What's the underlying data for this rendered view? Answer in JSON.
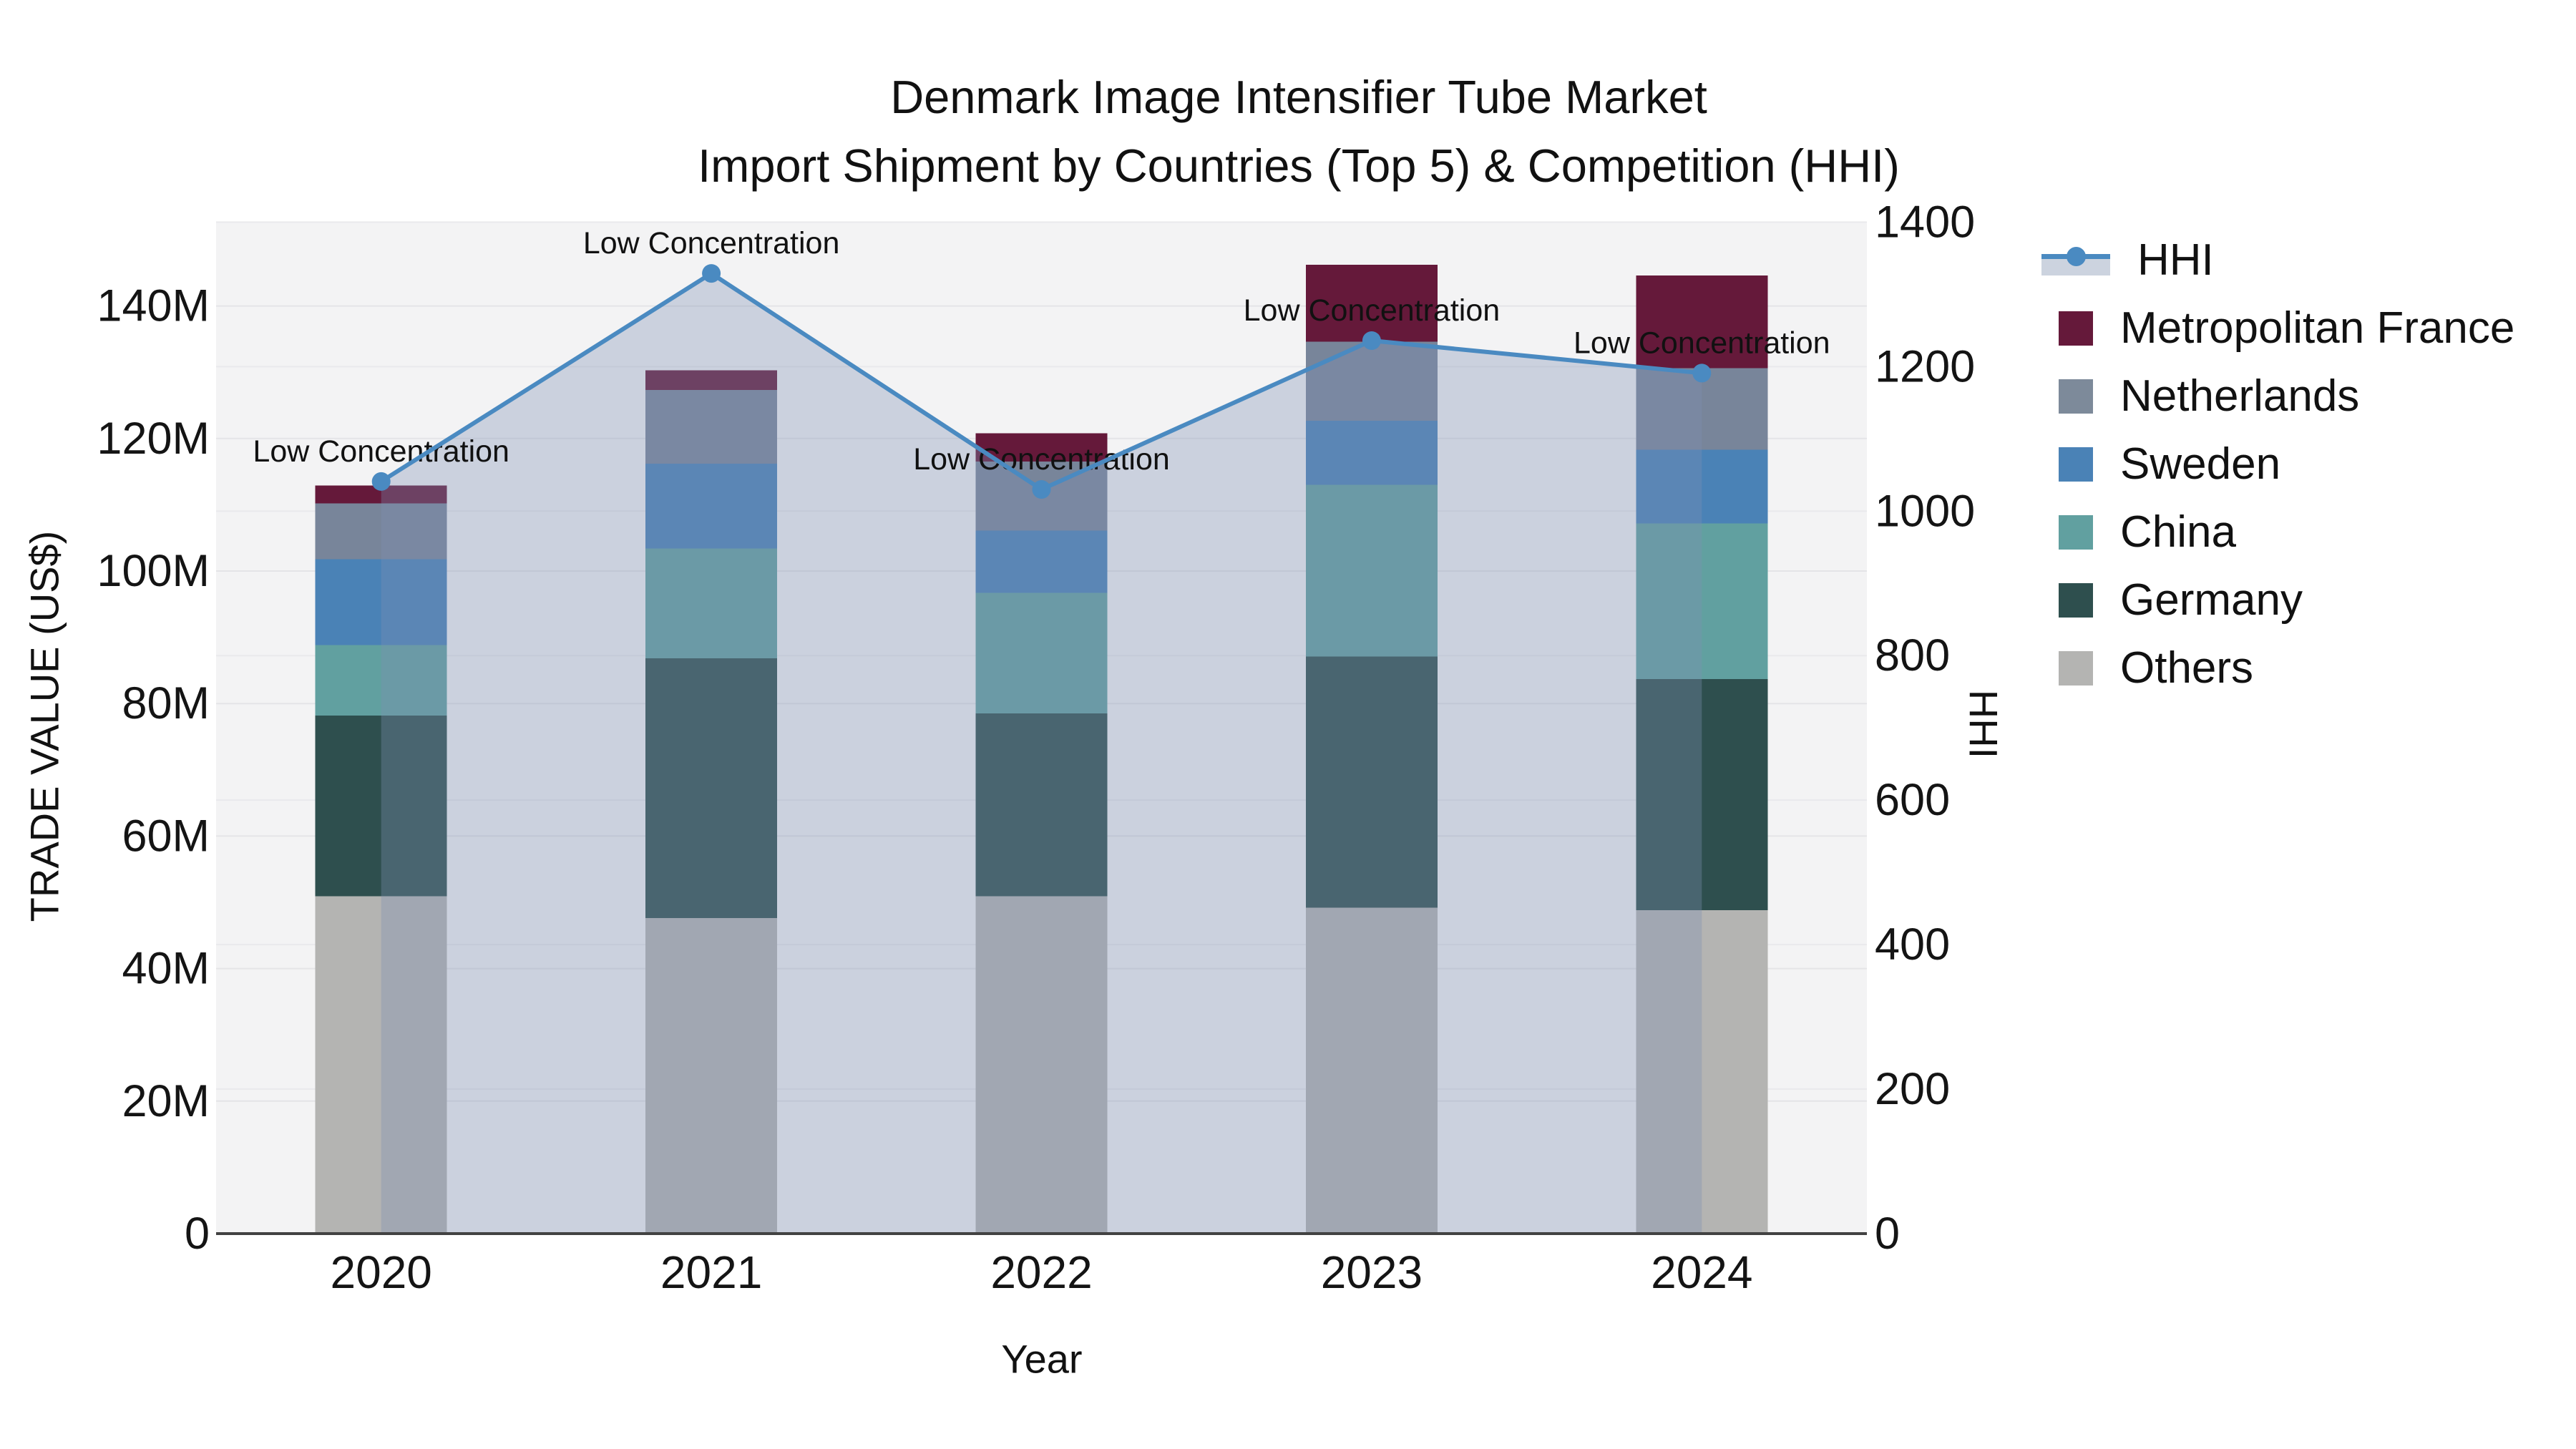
{
  "title": {
    "line1": "Denmark Image Intensifier Tube Market",
    "line2": "Import Shipment by Countries (Top 5) & Competition (HHI)"
  },
  "legend": {
    "position": "right",
    "items": [
      {
        "label": "HHI",
        "type": "line",
        "color": "#4a8ac1",
        "band_color": "#ccd3df"
      },
      {
        "label": "Metropolitan France",
        "type": "square",
        "color": "#65193a"
      },
      {
        "label": "Netherlands",
        "type": "square",
        "color": "#7d8a9a"
      },
      {
        "label": "Sweden",
        "type": "square",
        "color": "#4a82b6"
      },
      {
        "label": "China",
        "type": "square",
        "color": "#61a0a0"
      },
      {
        "label": "Germany",
        "type": "square",
        "color": "#2e4f4e"
      },
      {
        "label": "Others",
        "type": "square",
        "color": "#b4b4b2"
      }
    ]
  },
  "chart_data": {
    "type": "bar",
    "subtype": "stacked-bars-with-line-overlay",
    "title": "Denmark Image Intensifier Tube Market — Import Shipment by Countries (Top 5) & Competition (HHI)",
    "categories": [
      "2020",
      "2021",
      "2022",
      "2023",
      "2024"
    ],
    "values_unit": "million US$",
    "series": [
      {
        "name": "Others",
        "color": "#b4b4b2",
        "values": [
          50.9,
          47.6,
          50.9,
          49.2,
          48.8
        ]
      },
      {
        "name": "Germany",
        "color": "#2e4f4e",
        "values": [
          27.3,
          39.2,
          27.6,
          37.9,
          34.9
        ]
      },
      {
        "name": "China",
        "color": "#61a0a0",
        "values": [
          10.6,
          16.6,
          18.2,
          25.9,
          23.5
        ]
      },
      {
        "name": "Sweden",
        "color": "#4a82b6",
        "values": [
          13.0,
          12.8,
          9.4,
          9.7,
          11.1
        ]
      },
      {
        "name": "Netherlands",
        "color": "#78859a",
        "values": [
          8.4,
          11.1,
          10.4,
          11.9,
          12.3
        ]
      },
      {
        "name": "Metropolitan France",
        "color": "#65193a",
        "values": [
          2.7,
          3.0,
          4.3,
          11.6,
          14.0
        ]
      }
    ],
    "stack_totals": [
      112.9,
      130.3,
      120.8,
      146.2,
      144.6
    ],
    "line": {
      "name": "HHI",
      "color": "#4a8ac1",
      "area_fill": "rgba(125,143,178,0.34)",
      "values": [
        1041,
        1329,
        1030,
        1236,
        1191
      ],
      "axis": "right"
    },
    "annotation_text": "Low Concentration",
    "annotations": [
      {
        "category": "2020",
        "text": "Low Concentration"
      },
      {
        "category": "2021",
        "text": "Low Concentration"
      },
      {
        "category": "2022",
        "text": "Low Concentration"
      },
      {
        "category": "2023",
        "text": "Low Concentration"
      },
      {
        "category": "2024",
        "text": "Low Concentration"
      }
    ],
    "x": {
      "label": "Year"
    },
    "y_left": {
      "label": "TRADE VALUE (US$)",
      "tick_values": [
        0,
        20,
        40,
        60,
        80,
        100,
        120,
        140
      ],
      "tick_labels": [
        "0",
        "20M",
        "40M",
        "60M",
        "80M",
        "100M",
        "120M",
        "140M"
      ],
      "range": [
        0,
        152.7
      ]
    },
    "y_right": {
      "label": "HHI",
      "tick_values": [
        0,
        200,
        400,
        600,
        800,
        1000,
        1200,
        1400
      ],
      "tick_labels": [
        "0",
        "200",
        "400",
        "600",
        "800",
        "1000",
        "1200",
        "1400"
      ],
      "range": [
        0,
        1400
      ]
    },
    "grid": true,
    "plot_bg": "#f3f3f4",
    "grid_color": "#e4e4e7",
    "axis_line_color": "#424242",
    "legend_position": "right"
  }
}
